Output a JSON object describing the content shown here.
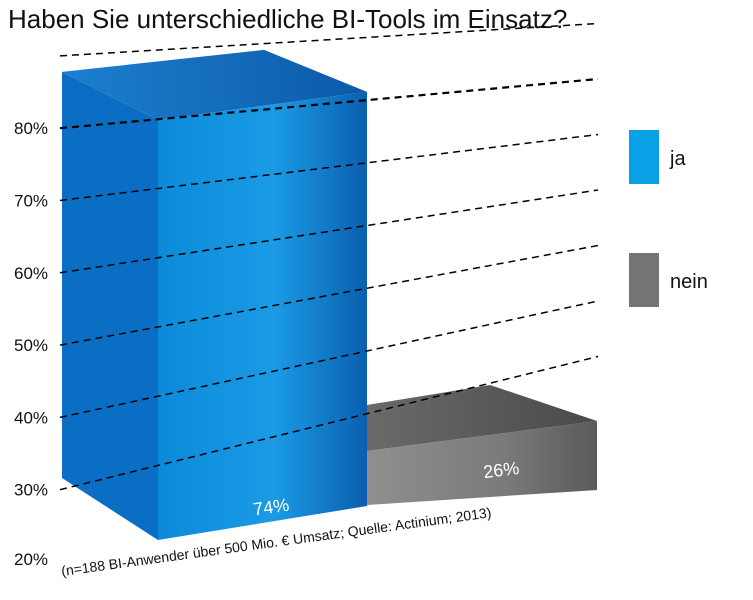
{
  "chart_data": {
    "type": "bar",
    "title": "Haben Sie unterschiedliche BI-Tools im Einsatz?",
    "categories": [
      "ja",
      "nein"
    ],
    "values": [
      74,
      26
    ],
    "value_labels": [
      "74%",
      "26%"
    ],
    "colors": [
      "#1e90d6",
      "#6d6d6d"
    ],
    "ylim": [
      20,
      80
    ],
    "yticks": [
      "80%",
      "70%",
      "60%",
      "50%",
      "40%",
      "30%",
      "20%"
    ],
    "legend": {
      "placement": "right",
      "items": [
        {
          "label": "ja",
          "color": "#0aa0e6"
        },
        {
          "label": "nein",
          "color": "#757575"
        }
      ]
    },
    "footnote": "(n=188 BI-Anwender über 500 Mio. € Umsatz; Quelle: Actinium; 2013)",
    "grid": true,
    "style": "3d-perspective"
  }
}
